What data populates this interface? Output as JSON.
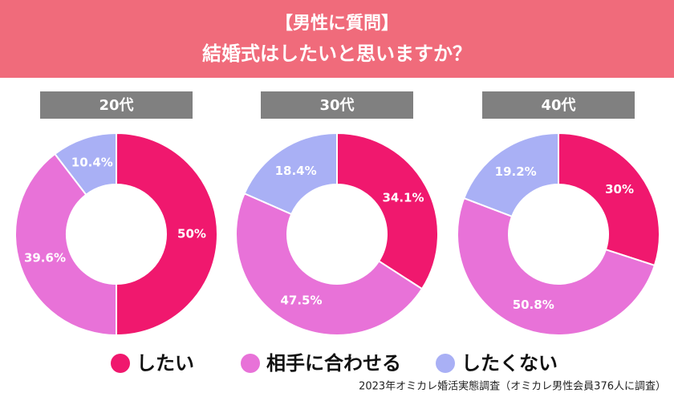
{
  "header": {
    "title_lines": [
      "【男性に質問】",
      "結婚式はしたいと思いますか？"
    ]
  },
  "source": "2023年オミカレ婚活実態調査（オミカレ男性会員376人に調査）",
  "chart_data": [
    {
      "type": "donut",
      "title": "20代",
      "categories": [
        "したい",
        "相手に合わせる",
        "したくない"
      ],
      "values": [
        50,
        39.6,
        10.4
      ],
      "value_labels": [
        "50%",
        "39.6%",
        "10.4%"
      ],
      "colors": [
        "#f0186e",
        "#e872d8",
        "#a9b0f5"
      ]
    },
    {
      "type": "donut",
      "title": "30代",
      "categories": [
        "したい",
        "相手に合わせる",
        "したくない"
      ],
      "values": [
        34.1,
        47.5,
        18.4
      ],
      "value_labels": [
        "34.1%",
        "47.5%",
        "18.4%"
      ],
      "colors": [
        "#f0186e",
        "#e872d8",
        "#a9b0f5"
      ]
    },
    {
      "type": "donut",
      "title": "40代",
      "categories": [
        "したい",
        "相手に合わせる",
        "したくない"
      ],
      "values": [
        30,
        50.8,
        19.2
      ],
      "value_labels": [
        "30%",
        "50.8%",
        "19.2%"
      ],
      "colors": [
        "#f0186e",
        "#e872d8",
        "#a9b0f5"
      ]
    }
  ]
}
